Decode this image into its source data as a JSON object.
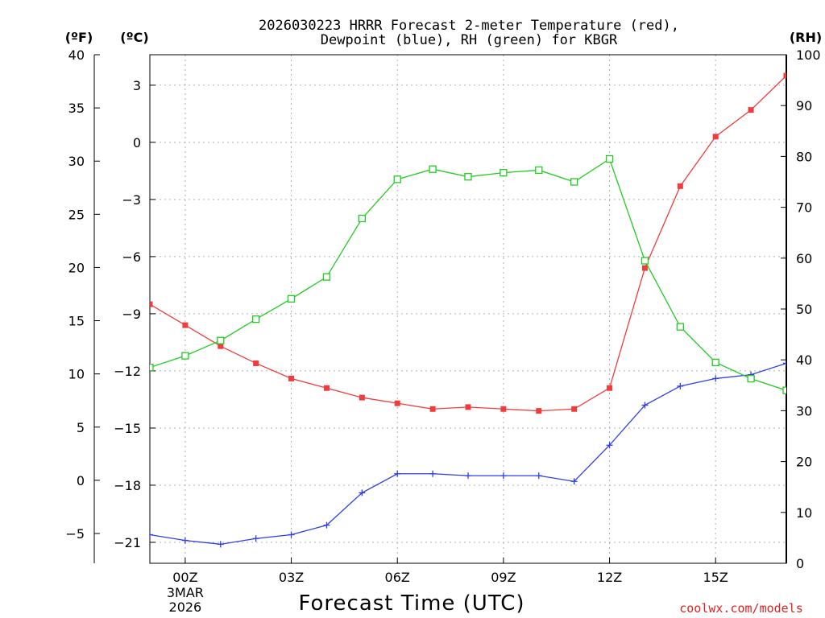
{
  "chart_data": {
    "type": "line",
    "title_line1": "2026030223 HRRR Forecast 2-meter Temperature (red),",
    "title_line2": "Dewpoint (blue), RH (green) for KBGR",
    "xlabel": "Forecast Time (UTC)",
    "credit": "coolwx.com/models",
    "units": {
      "fahrenheit": "(ºF)",
      "celsius": "(ºC)",
      "rh": "(RH)"
    },
    "x_hours": [
      -1,
      0,
      1,
      2,
      3,
      4,
      5,
      6,
      7,
      8,
      9,
      10,
      11,
      12,
      13,
      14,
      15,
      16,
      17
    ],
    "xlim": [
      -1,
      17
    ],
    "x_ticks": [
      {
        "hour": 0,
        "label": "00Z",
        "label2": "3MAR",
        "label3": "2026"
      },
      {
        "hour": 3,
        "label": "03Z"
      },
      {
        "hour": 6,
        "label": "06Z"
      },
      {
        "hour": 9,
        "label": "09Z"
      },
      {
        "hour": 12,
        "label": "12Z"
      },
      {
        "hour": 15,
        "label": "15Z"
      }
    ],
    "celsius_axis": {
      "ylim": [
        -22.1,
        4.6
      ],
      "ticks": [
        "3",
        "0",
        "−3",
        "−6",
        "−9",
        "−12",
        "−15",
        "−18",
        "−21"
      ],
      "tick_values": [
        3,
        0,
        -3,
        -6,
        -9,
        -12,
        -15,
        -18,
        -21
      ]
    },
    "fahrenheit_axis": {
      "ylim": [
        -7.8,
        40
      ],
      "ticks": [
        "40",
        "35",
        "30",
        "25",
        "20",
        "15",
        "10",
        "5",
        "0",
        "−5"
      ],
      "tick_values": [
        40,
        35,
        30,
        25,
        20,
        15,
        10,
        5,
        0,
        -5
      ]
    },
    "rh_axis": {
      "ylim": [
        0,
        100
      ],
      "ticks": [
        "100",
        "90",
        "80",
        "70",
        "60",
        "50",
        "40",
        "30",
        "20",
        "10",
        "0"
      ],
      "tick_values": [
        100,
        90,
        80,
        70,
        60,
        50,
        40,
        30,
        20,
        10,
        0
      ]
    },
    "series": [
      {
        "name": "Temperature",
        "axis": "celsius",
        "color": "#f03c3c",
        "marker": "filled-square",
        "values": [
          -8.5,
          -9.6,
          -10.7,
          -11.6,
          -12.4,
          -12.9,
          -13.4,
          -13.7,
          -14.0,
          -13.9,
          -14.0,
          -14.1,
          -14.0,
          -12.9,
          -6.6,
          -2.3,
          0.3,
          1.7,
          3.5
        ]
      },
      {
        "name": "Dewpoint",
        "axis": "celsius",
        "color": "#2e3ee8",
        "marker": "plus",
        "values": [
          -20.6,
          -20.9,
          -21.1,
          -20.8,
          -20.6,
          -20.1,
          -18.4,
          -17.4,
          -17.4,
          -17.5,
          -17.5,
          -17.5,
          -17.8,
          -15.9,
          -13.8,
          -12.8,
          -12.4,
          -12.2,
          -11.6
        ]
      },
      {
        "name": "RH",
        "axis": "rh",
        "color": "#22cc22",
        "marker": "open-square",
        "values": [
          38.5,
          40.8,
          43.8,
          48.0,
          52.0,
          56.3,
          67.8,
          75.5,
          77.5,
          76.0,
          76.8,
          77.3,
          75.0,
          79.5,
          59.5,
          46.5,
          39.5,
          36.3,
          34.0
        ]
      }
    ]
  }
}
